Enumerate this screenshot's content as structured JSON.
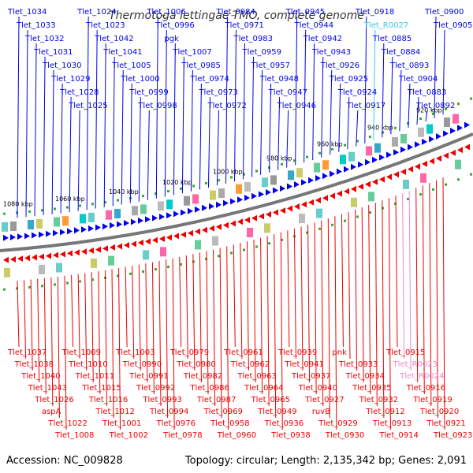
{
  "title": "Thermotoga lettingae TMO, complete genome",
  "footer": {
    "accession": "Accession: NC_009828",
    "summary": "Topology: circular; Length: 2,135,342 bp; Genes: 2,091"
  },
  "colors": {
    "forward": "#0000ee",
    "reverse": "#ee0000",
    "rna": "#33ccee",
    "ncrna": "#ee88cc",
    "backbone": "#777777",
    "tick": "#33aa33"
  },
  "kbp_labels": [
    "1080 kbp",
    "1060 kbp",
    "1040 kbp",
    "1020 kbp",
    "1000 kbp",
    "980 kbp",
    "960 kbp",
    "940 kbp",
    "920 kbp"
  ],
  "top_labels": [
    {
      "text": "Tlet_1034",
      "type": "forward"
    },
    {
      "text": "Tlet_1033",
      "type": "forward"
    },
    {
      "text": "Tlet_1032",
      "type": "forward"
    },
    {
      "text": "Tlet_1031",
      "type": "forward"
    },
    {
      "text": "Tlet_1030",
      "type": "forward"
    },
    {
      "text": "Tlet_1029",
      "type": "forward"
    },
    {
      "text": "Tlet_1028",
      "type": "forward"
    },
    {
      "text": "Tlet_1025",
      "type": "forward"
    },
    {
      "text": "Tlet_1024",
      "type": "forward"
    },
    {
      "text": "Tlet_1023",
      "type": "forward"
    },
    {
      "text": "Tlet_1042",
      "type": "forward"
    },
    {
      "text": "Tlet_1041",
      "type": "forward"
    },
    {
      "text": "Tlet_1005",
      "type": "forward"
    },
    {
      "text": "Tlet_1000",
      "type": "forward"
    },
    {
      "text": "Tlet_0999",
      "type": "forward"
    },
    {
      "text": "Tlet_0998",
      "type": "forward"
    },
    {
      "text": "Tlet_1006",
      "type": "forward"
    },
    {
      "text": "Tlet_0996",
      "type": "forward"
    },
    {
      "text": "pgk",
      "type": "forward"
    },
    {
      "text": "Tlet_1007",
      "type": "forward"
    },
    {
      "text": "Tlet_0985",
      "type": "forward"
    },
    {
      "text": "Tlet_0974",
      "type": "forward"
    },
    {
      "text": "Tlet_0973",
      "type": "forward"
    },
    {
      "text": "Tlet_0972",
      "type": "forward"
    },
    {
      "text": "Tlet_0984",
      "type": "forward"
    },
    {
      "text": "Tlet_0971",
      "type": "forward"
    },
    {
      "text": "Tlet_0983",
      "type": "forward"
    },
    {
      "text": "Tlet_0959",
      "type": "forward"
    },
    {
      "text": "Tlet_0957",
      "type": "forward"
    },
    {
      "text": "Tlet_0948",
      "type": "forward"
    },
    {
      "text": "Tlet_0947",
      "type": "forward"
    },
    {
      "text": "Tlet_0946",
      "type": "forward"
    },
    {
      "text": "Tlet_0945",
      "type": "forward"
    },
    {
      "text": "Tlet_0944",
      "type": "forward"
    },
    {
      "text": "Tlet_0942",
      "type": "forward"
    },
    {
      "text": "Tlet_0943",
      "type": "forward"
    },
    {
      "text": "Tlet_0926",
      "type": "forward"
    },
    {
      "text": "Tlet_0925",
      "type": "forward"
    },
    {
      "text": "Tlet_0924",
      "type": "forward"
    },
    {
      "text": "Tlet_0917",
      "type": "forward"
    },
    {
      "text": "Tlet_0918",
      "type": "forward"
    },
    {
      "text": "Tlet_R0027",
      "type": "rna"
    },
    {
      "text": "Tlet_0885",
      "type": "forward"
    },
    {
      "text": "Tlet_0884",
      "type": "forward"
    },
    {
      "text": "Tlet_0893",
      "type": "forward"
    },
    {
      "text": "Tlet_0904",
      "type": "forward"
    },
    {
      "text": "Tlet_0883",
      "type": "forward"
    },
    {
      "text": "Tlet_0892",
      "type": "forward"
    },
    {
      "text": "Tlet_0900",
      "type": "forward"
    },
    {
      "text": "Tlet_0905",
      "type": "forward"
    }
  ],
  "bottom_labels": [
    {
      "text": "Tlet_1037",
      "type": "reverse"
    },
    {
      "text": "Tlet_1038",
      "type": "reverse"
    },
    {
      "text": "Tlet_1040",
      "type": "reverse"
    },
    {
      "text": "Tlet_1043",
      "type": "reverse"
    },
    {
      "text": "Tlet_1026",
      "type": "reverse"
    },
    {
      "text": "aspA",
      "type": "reverse"
    },
    {
      "text": "Tlet_1022",
      "type": "reverse"
    },
    {
      "text": "Tlet_1008",
      "type": "reverse"
    },
    {
      "text": "Tlet_1009",
      "type": "reverse"
    },
    {
      "text": "Tlet_1010",
      "type": "reverse"
    },
    {
      "text": "Tlet_1011",
      "type": "reverse"
    },
    {
      "text": "Tlet_1015",
      "type": "reverse"
    },
    {
      "text": "Tlet_1016",
      "type": "reverse"
    },
    {
      "text": "Tlet_1012",
      "type": "reverse"
    },
    {
      "text": "Tlet_1001",
      "type": "reverse"
    },
    {
      "text": "Tlet_1002",
      "type": "reverse"
    },
    {
      "text": "Tlet_1003",
      "type": "reverse"
    },
    {
      "text": "Tlet_0990",
      "type": "reverse"
    },
    {
      "text": "Tlet_0991",
      "type": "reverse"
    },
    {
      "text": "Tlet_0992",
      "type": "reverse"
    },
    {
      "text": "Tlet_0993",
      "type": "reverse"
    },
    {
      "text": "Tlet_0994",
      "type": "reverse"
    },
    {
      "text": "Tlet_0976",
      "type": "reverse"
    },
    {
      "text": "Tlet_0978",
      "type": "reverse"
    },
    {
      "text": "Tlet_0979",
      "type": "reverse"
    },
    {
      "text": "Tlet_0980",
      "type": "reverse"
    },
    {
      "text": "Tlet_0982",
      "type": "reverse"
    },
    {
      "text": "Tlet_0986",
      "type": "reverse"
    },
    {
      "text": "Tlet_0987",
      "type": "reverse"
    },
    {
      "text": "Tlet_0969",
      "type": "reverse"
    },
    {
      "text": "Tlet_0958",
      "type": "reverse"
    },
    {
      "text": "Tlet_0960",
      "type": "reverse"
    },
    {
      "text": "Tlet_0961",
      "type": "reverse"
    },
    {
      "text": "Tlet_0962",
      "type": "reverse"
    },
    {
      "text": "Tlet_0963",
      "type": "reverse"
    },
    {
      "text": "Tlet_0964",
      "type": "reverse"
    },
    {
      "text": "Tlet_0965",
      "type": "reverse"
    },
    {
      "text": "Tlet_0949",
      "type": "reverse"
    },
    {
      "text": "Tlet_0936",
      "type": "reverse"
    },
    {
      "text": "Tlet_0938",
      "type": "reverse"
    },
    {
      "text": "Tlet_0939",
      "type": "reverse"
    },
    {
      "text": "Tlet_0941",
      "type": "reverse"
    },
    {
      "text": "Tlet_0937",
      "type": "reverse"
    },
    {
      "text": "Tlet_0940",
      "type": "reverse"
    },
    {
      "text": "Tlet_0927",
      "type": "reverse"
    },
    {
      "text": "ruvB",
      "type": "reverse"
    },
    {
      "text": "Tlet_0929",
      "type": "reverse"
    },
    {
      "text": "Tlet_0930",
      "type": "reverse"
    },
    {
      "text": "pnk",
      "type": "reverse"
    },
    {
      "text": "Tlet_0933",
      "type": "reverse"
    },
    {
      "text": "Tlet_0934",
      "type": "reverse"
    },
    {
      "text": "Tlet_0935",
      "type": "reverse"
    },
    {
      "text": "Tlet_0932",
      "type": "reverse"
    },
    {
      "text": "Tlet_0912",
      "type": "reverse"
    },
    {
      "text": "Tlet_0913",
      "type": "reverse"
    },
    {
      "text": "Tlet_0914",
      "type": "reverse"
    },
    {
      "text": "Tlet_0915",
      "type": "reverse"
    },
    {
      "text": "Tlet_R0023",
      "type": "ncrna"
    },
    {
      "text": "Tlet_R0024",
      "type": "ncrna"
    },
    {
      "text": "Tlet_0916",
      "type": "reverse"
    },
    {
      "text": "Tlet_0919",
      "type": "reverse"
    },
    {
      "text": "Tlet_0920",
      "type": "reverse"
    },
    {
      "text": "Tlet_0921",
      "type": "reverse"
    },
    {
      "text": "Tlet_0923",
      "type": "reverse"
    }
  ]
}
